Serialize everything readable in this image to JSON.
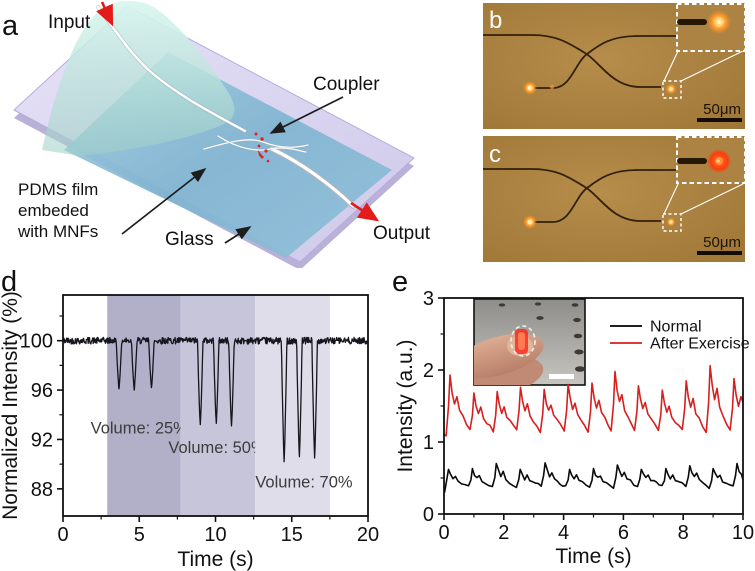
{
  "figure": {
    "background": "#ffffff"
  },
  "panel_labels": {
    "a": "a",
    "b": "b",
    "c": "c",
    "d": "d",
    "e": "e"
  },
  "schematic": {
    "input_label": "Input",
    "coupler_label": "Coupler",
    "pdms_label_lines": [
      "PDMS film",
      "embeded",
      "with MNFs"
    ],
    "glass_label": "Glass",
    "output_label": "Output",
    "colors": {
      "glass": "#d7d2ee",
      "glass_side": "#b9b1d8",
      "film": "#85b9d6",
      "film_curl": "#c9efe5",
      "fiber": "#ffffff",
      "red_arrow": "#e31b1b",
      "black_arrow": "#1d1d1d",
      "scatter_red": "#e02222"
    }
  },
  "micrographs": {
    "b": {
      "label": "b",
      "scale_label": "50μm",
      "background": "#ac8242"
    },
    "c": {
      "label": "c",
      "scale_label": "50μm",
      "background": "#ac8242"
    }
  },
  "chart_data": [
    {
      "id": "d",
      "type": "line",
      "xlabel": "Time (s)",
      "ylabel": "Normalized Intensity (%)",
      "xlim": [
        0,
        20
      ],
      "ylim": [
        85.8,
        103.7
      ],
      "xticks": [
        0,
        5,
        10,
        15,
        20
      ],
      "xminor": [
        2.5,
        7.5,
        12.5,
        17.5
      ],
      "yticks": [
        88,
        92,
        96,
        100
      ],
      "yminor": [
        90,
        94,
        98,
        102
      ],
      "grid": false,
      "line_color": "#16161e",
      "baseline": 100,
      "noise_amp": 0.27,
      "bands": [
        {
          "x0": 2.9,
          "x1": 7.7,
          "color": "#b2afc9",
          "label": "Volume: 25%",
          "label_x": 5.0,
          "label_y": 92.5
        },
        {
          "x0": 7.7,
          "x1": 12.6,
          "color": "#c7c5d9",
          "label": "Volume: 50%",
          "label_x": 10.1,
          "label_y": 90.9
        },
        {
          "x0": 12.6,
          "x1": 17.5,
          "color": "#dedde9",
          "label": "Volume: 70%",
          "label_x": 15.8,
          "label_y": 88.1
        }
      ],
      "dips": [
        {
          "t": 3.67,
          "min": 96.1
        },
        {
          "t": 4.67,
          "min": 96.0
        },
        {
          "t": 5.8,
          "min": 96.2
        },
        {
          "t": 9.0,
          "min": 93.2
        },
        {
          "t": 10.05,
          "min": 93.3
        },
        {
          "t": 11.05,
          "min": 93.1
        },
        {
          "t": 14.5,
          "min": 90.2
        },
        {
          "t": 15.5,
          "min": 90.6
        },
        {
          "t": 16.5,
          "min": 90.5
        }
      ]
    },
    {
      "id": "e",
      "type": "line",
      "xlabel": "Time (s)",
      "ylabel": "Intensity (a.u.)",
      "xlim": [
        0,
        10
      ],
      "ylim": [
        0,
        3
      ],
      "xticks": [
        0,
        2,
        4,
        6,
        8,
        10
      ],
      "xminor": [
        1,
        3,
        5,
        7,
        9
      ],
      "yticks": [
        0,
        1,
        2,
        3
      ],
      "yminor": [
        0.5,
        1.5,
        2.5
      ],
      "grid": false,
      "legend": {
        "position": "top-right",
        "entries": [
          {
            "label": "Normal",
            "color": "#000000"
          },
          {
            "label": "After Exercise",
            "color": "#d81f1f"
          }
        ]
      },
      "series": [
        {
          "name": "Normal",
          "color": "#0a0a0a",
          "base": 0.36,
          "beat_times": [
            0.15,
            0.95,
            1.75,
            2.55,
            3.38,
            4.2,
            5.0,
            5.8,
            6.6,
            7.42,
            8.22,
            9.0,
            9.8
          ],
          "peaks": [
            0.62,
            0.63,
            0.7,
            0.62,
            0.71,
            0.62,
            0.63,
            0.68,
            0.62,
            0.63,
            0.67,
            0.63,
            0.7
          ]
        },
        {
          "name": "After Exercise",
          "color": "#d81f1f",
          "base": 1.13,
          "beat_times": [
            0.2,
            1.0,
            1.78,
            2.56,
            3.35,
            4.15,
            4.95,
            5.72,
            6.5,
            7.3,
            8.1,
            8.9,
            9.7
          ],
          "peaks": [
            1.93,
            1.68,
            1.7,
            1.76,
            1.73,
            1.8,
            1.82,
            1.98,
            1.78,
            1.72,
            1.85,
            2.06,
            1.88
          ]
        }
      ]
    }
  ]
}
